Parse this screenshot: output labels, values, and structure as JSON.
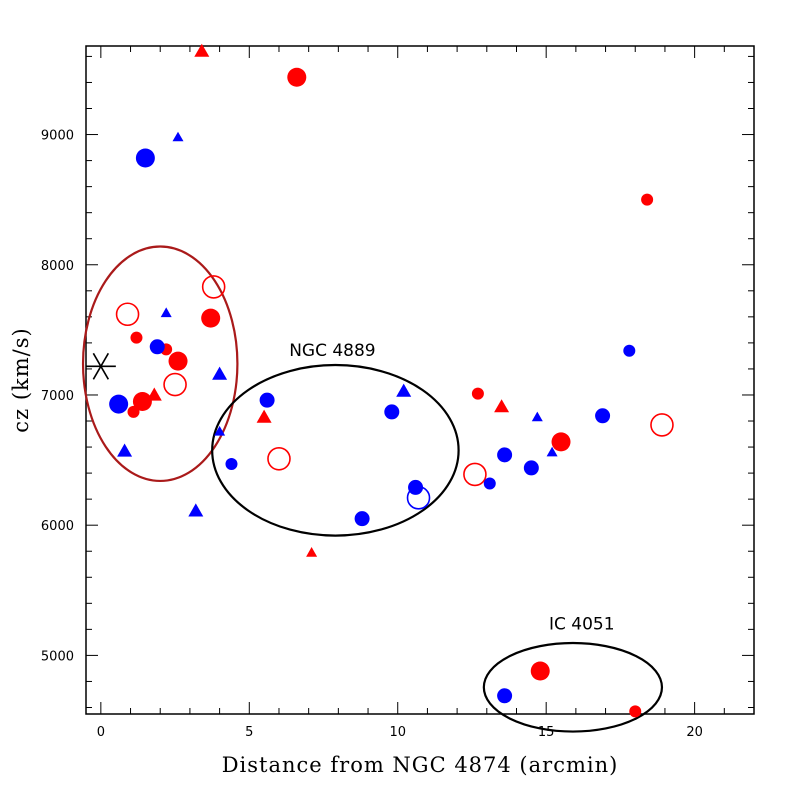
{
  "chart_data": {
    "type": "scatter",
    "title": "",
    "xlabel": "Distance from NGC 4874 (arcmin)",
    "ylabel": "cz (km/s)",
    "xlim": [
      -0.5,
      22
    ],
    "ylim": [
      4550,
      9680
    ],
    "xticks": [
      0,
      5,
      10,
      15,
      20
    ],
    "yticks": [
      5000,
      6000,
      7000,
      8000,
      9000
    ],
    "xtick_labels": [
      "0",
      "5",
      "10",
      "15",
      "20"
    ],
    "ytick_labels": [
      "5000",
      "6000",
      "7000",
      "8000",
      "9000"
    ],
    "grid": false,
    "colors": {
      "red": "#ff0000",
      "blue": "#0000ff",
      "ellipse_dark_red": "#aa1a1a",
      "black": "#000000"
    },
    "reference_marker": {
      "name": "NGC 4874",
      "symbol": "asterisk",
      "x": 0.0,
      "y": 7220
    },
    "series": [
      {
        "name": "red filled circles large",
        "color": "red",
        "marker": "circle",
        "filled": true,
        "size": "large",
        "points": [
          [
            6.6,
            9440
          ],
          [
            3.7,
            7590
          ],
          [
            2.6,
            7260
          ],
          [
            1.4,
            6950
          ],
          [
            15.5,
            6640
          ],
          [
            14.8,
            4880
          ]
        ]
      },
      {
        "name": "red filled circles small",
        "color": "red",
        "marker": "circle",
        "filled": true,
        "size": "small",
        "points": [
          [
            18.4,
            8500
          ],
          [
            1.2,
            7440
          ],
          [
            2.2,
            7350
          ],
          [
            1.1,
            6870
          ],
          [
            12.7,
            7010
          ],
          [
            18.0,
            4570
          ]
        ]
      },
      {
        "name": "red open circles",
        "color": "red",
        "marker": "circle",
        "filled": false,
        "size": "large",
        "points": [
          [
            0.9,
            7620
          ],
          [
            3.8,
            7830
          ],
          [
            2.5,
            7080
          ],
          [
            6.0,
            6510
          ],
          [
            12.6,
            6390
          ],
          [
            18.9,
            6770
          ]
        ]
      },
      {
        "name": "red triangles large",
        "color": "red",
        "marker": "triangle",
        "filled": true,
        "size": "large",
        "points": [
          [
            3.4,
            9640
          ],
          [
            1.8,
            7000
          ],
          [
            5.5,
            6830
          ],
          [
            13.5,
            6910
          ]
        ]
      },
      {
        "name": "red triangles small",
        "color": "red",
        "marker": "triangle",
        "filled": true,
        "size": "small",
        "points": [
          [
            7.1,
            5790
          ]
        ]
      },
      {
        "name": "blue filled circles large",
        "color": "blue",
        "marker": "circle",
        "filled": true,
        "size": "large",
        "points": [
          [
            1.5,
            8820
          ],
          [
            0.6,
            6930
          ]
        ]
      },
      {
        "name": "blue filled circles medium",
        "color": "blue",
        "marker": "circle",
        "filled": true,
        "size": "medium",
        "points": [
          [
            1.9,
            7370
          ],
          [
            5.6,
            6960
          ],
          [
            9.8,
            6870
          ],
          [
            10.6,
            6290
          ],
          [
            8.8,
            6050
          ],
          [
            13.6,
            6540
          ],
          [
            14.5,
            6440
          ],
          [
            16.9,
            6840
          ],
          [
            13.6,
            4690
          ]
        ]
      },
      {
        "name": "blue filled circles small",
        "color": "blue",
        "marker": "circle",
        "filled": true,
        "size": "small",
        "points": [
          [
            4.4,
            6470
          ],
          [
            13.1,
            6320
          ],
          [
            17.8,
            7340
          ]
        ]
      },
      {
        "name": "blue open circles",
        "color": "blue",
        "marker": "circle",
        "filled": false,
        "size": "large",
        "points": [
          [
            10.7,
            6210
          ]
        ]
      },
      {
        "name": "blue triangles large",
        "color": "blue",
        "marker": "triangle",
        "filled": true,
        "size": "large",
        "points": [
          [
            4.0,
            7160
          ],
          [
            0.8,
            6570
          ],
          [
            3.2,
            6110
          ],
          [
            10.2,
            7030
          ]
        ]
      },
      {
        "name": "blue triangles small",
        "color": "blue",
        "marker": "triangle",
        "filled": true,
        "size": "small",
        "points": [
          [
            2.6,
            8980
          ],
          [
            2.2,
            7630
          ],
          [
            4.0,
            6720
          ],
          [
            14.7,
            6830
          ],
          [
            15.2,
            6560
          ]
        ]
      }
    ],
    "ellipses": [
      {
        "name": "ellipse-left-group",
        "color": "ellipse_dark_red",
        "cx": 2.0,
        "cy": 7240,
        "rx": 2.6,
        "ry": 900
      },
      {
        "name": "ellipse-ngc-4889",
        "color": "black",
        "cx": 7.9,
        "cy": 6575,
        "rx": 4.15,
        "ry": 655
      },
      {
        "name": "ellipse-ic-4051",
        "color": "black",
        "cx": 15.9,
        "cy": 4755,
        "rx": 3.0,
        "ry": 340
      }
    ],
    "annotations": [
      {
        "name": "ngc-4889-label",
        "text": "NGC 4889",
        "x": 7.8,
        "y": 7300
      },
      {
        "name": "ic-4051-label",
        "text": "IC 4051",
        "x": 16.2,
        "y": 5200
      }
    ]
  }
}
